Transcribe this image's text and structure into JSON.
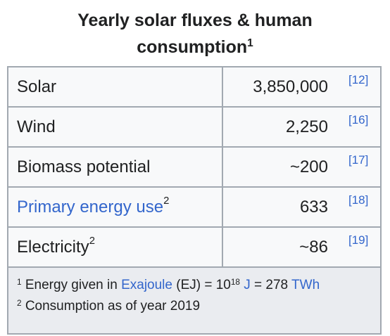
{
  "caption": {
    "title": "Yearly solar fluxes & human consumption",
    "title_note": "1"
  },
  "rows": [
    {
      "label": "Solar",
      "note": "",
      "value": "3,850,000",
      "ref": "[12]",
      "label_is_link": false
    },
    {
      "label": "Wind",
      "note": "",
      "value": "2,250",
      "ref": "[16]",
      "label_is_link": false
    },
    {
      "label": "Biomass potential",
      "note": "",
      "value": "~200",
      "ref": "[17]",
      "label_is_link": false
    },
    {
      "label": "Primary energy use",
      "note": "2",
      "value": "633",
      "ref": "[18]",
      "label_is_link": true
    },
    {
      "label": "Electricity",
      "note": "2",
      "value": "~86",
      "ref": "[19]",
      "label_is_link": false
    }
  ],
  "footnotes": {
    "note1_marker": "1",
    "note1_prefix": "Energy given in",
    "note1_link_exajoule": "Exajoule",
    "note1_mid": "(EJ) = 10",
    "note1_exp": "18",
    "note1_link_j": "J",
    "note1_eq": "= 278",
    "note1_link_twh": "TWh",
    "note2_marker": "2",
    "note2_text": "Consumption as of year 2019"
  },
  "colors": {
    "link": "#3366cc",
    "border": "#a2a9b1",
    "footer_bg": "#eaecf0",
    "cell_bg": "#f8f9fa",
    "text": "#202122"
  }
}
